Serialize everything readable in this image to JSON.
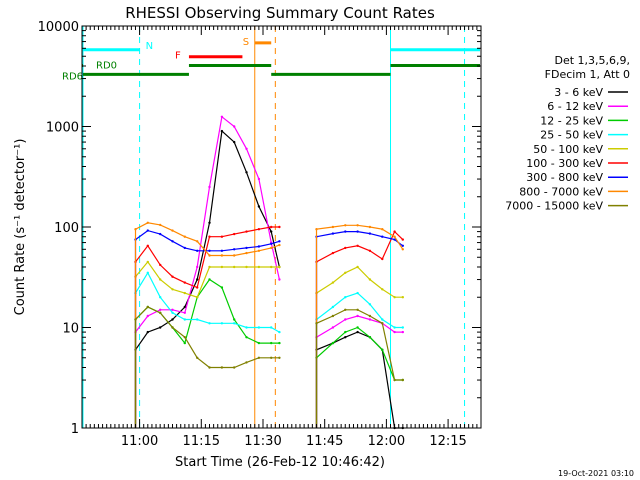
{
  "chart_data": {
    "type": "line",
    "title": "RHESSI Observing Summary Count Rates",
    "xlabel": "Start Time (26-Feb-12 10:46:42)",
    "ylabel": "Count Rate (s⁻¹ detector⁻¹)",
    "yscale": "log",
    "ylim": [
      1,
      10000
    ],
    "xlim_min_from_start": [
      0,
      97
    ],
    "x_ticks": [
      {
        "label": "11:00",
        "t": 14
      },
      {
        "label": "11:15",
        "t": 29
      },
      {
        "label": "11:30",
        "t": 44
      },
      {
        "label": "11:45",
        "t": 59
      },
      {
        "label": "12:00",
        "t": 74
      },
      {
        "label": "12:15",
        "t": 89
      }
    ],
    "y_ticks": [
      {
        "label": "1",
        "v": 1
      },
      {
        "label": "10",
        "v": 10
      },
      {
        "label": "100",
        "v": 100
      },
      {
        "label": "1000",
        "v": 1000
      },
      {
        "label": "10000",
        "v": 10000
      }
    ],
    "legend_header": [
      "Det 1,3,5,6,9,",
      "FDecim 1, Att 0"
    ],
    "legend_position": "right",
    "series": [
      {
        "name": "3 - 6 keV",
        "color": "#000000",
        "points": [
          [
            13,
            6
          ],
          [
            16,
            9
          ],
          [
            19,
            10
          ],
          [
            22,
            12
          ],
          [
            25,
            16
          ],
          [
            28,
            30
          ],
          [
            31,
            110
          ],
          [
            34,
            900
          ],
          [
            37,
            700
          ],
          [
            40,
            350
          ],
          [
            43,
            160
          ],
          [
            46,
            90
          ],
          [
            48,
            40
          ],
          [
            57,
            6
          ],
          [
            61,
            7
          ],
          [
            64,
            8
          ],
          [
            67,
            9
          ],
          [
            70,
            8
          ],
          [
            73,
            6
          ],
          [
            76,
            1
          ],
          [
            78,
            1
          ]
        ]
      },
      {
        "name": "6 - 12 keV",
        "color": "#ff00ff",
        "points": [
          [
            13,
            9
          ],
          [
            16,
            13
          ],
          [
            19,
            15
          ],
          [
            22,
            15
          ],
          [
            25,
            14
          ],
          [
            28,
            40
          ],
          [
            31,
            250
          ],
          [
            34,
            1250
          ],
          [
            37,
            1000
          ],
          [
            40,
            600
          ],
          [
            43,
            300
          ],
          [
            46,
            70
          ],
          [
            48,
            30
          ],
          [
            57,
            8
          ],
          [
            61,
            10
          ],
          [
            64,
            12
          ],
          [
            67,
            13
          ],
          [
            70,
            12
          ],
          [
            73,
            11
          ],
          [
            76,
            9
          ],
          [
            78,
            9
          ]
        ]
      },
      {
        "name": "12 - 25 keV",
        "color": "#00cc00",
        "points": [
          [
            13,
            12
          ],
          [
            16,
            16
          ],
          [
            19,
            14
          ],
          [
            22,
            10
          ],
          [
            25,
            7
          ],
          [
            28,
            20
          ],
          [
            31,
            30
          ],
          [
            34,
            25
          ],
          [
            37,
            12
          ],
          [
            40,
            8
          ],
          [
            43,
            7
          ],
          [
            46,
            7
          ],
          [
            48,
            7
          ],
          [
            57,
            5
          ],
          [
            61,
            7
          ],
          [
            64,
            9
          ],
          [
            67,
            10
          ],
          [
            70,
            8
          ],
          [
            73,
            6
          ],
          [
            76,
            3
          ],
          [
            78,
            3
          ]
        ]
      },
      {
        "name": "25 - 50 keV",
        "color": "#00ffff",
        "points": [
          [
            13,
            22
          ],
          [
            16,
            35
          ],
          [
            19,
            20
          ],
          [
            22,
            14
          ],
          [
            25,
            12
          ],
          [
            28,
            12
          ],
          [
            31,
            11
          ],
          [
            34,
            11
          ],
          [
            37,
            11
          ],
          [
            40,
            10
          ],
          [
            43,
            10
          ],
          [
            46,
            10
          ],
          [
            48,
            9
          ],
          [
            57,
            12
          ],
          [
            61,
            16
          ],
          [
            64,
            20
          ],
          [
            67,
            22
          ],
          [
            70,
            17
          ],
          [
            73,
            12
          ],
          [
            76,
            10
          ],
          [
            78,
            10
          ]
        ]
      },
      {
        "name": "50 - 100 keV",
        "color": "#cccc00",
        "points": [
          [
            13,
            32
          ],
          [
            16,
            45
          ],
          [
            19,
            30
          ],
          [
            22,
            24
          ],
          [
            25,
            22
          ],
          [
            28,
            20
          ],
          [
            31,
            40
          ],
          [
            34,
            40
          ],
          [
            37,
            40
          ],
          [
            40,
            40
          ],
          [
            43,
            40
          ],
          [
            46,
            40
          ],
          [
            48,
            40
          ],
          [
            57,
            22
          ],
          [
            61,
            28
          ],
          [
            64,
            35
          ],
          [
            67,
            40
          ],
          [
            70,
            30
          ],
          [
            73,
            24
          ],
          [
            76,
            20
          ],
          [
            78,
            20
          ]
        ]
      },
      {
        "name": "100 - 300 keV",
        "color": "#ff0000",
        "points": [
          [
            13,
            45
          ],
          [
            16,
            65
          ],
          [
            19,
            42
          ],
          [
            22,
            32
          ],
          [
            25,
            28
          ],
          [
            28,
            25
          ],
          [
            31,
            80
          ],
          [
            34,
            80
          ],
          [
            37,
            85
          ],
          [
            40,
            90
          ],
          [
            43,
            95
          ],
          [
            46,
            100
          ],
          [
            48,
            100
          ],
          [
            57,
            45
          ],
          [
            61,
            55
          ],
          [
            64,
            62
          ],
          [
            67,
            65
          ],
          [
            70,
            58
          ],
          [
            73,
            48
          ],
          [
            76,
            90
          ],
          [
            78,
            75
          ]
        ]
      },
      {
        "name": "300 - 800 keV",
        "color": "#0000ff",
        "points": [
          [
            13,
            75
          ],
          [
            16,
            92
          ],
          [
            19,
            85
          ],
          [
            22,
            72
          ],
          [
            25,
            62
          ],
          [
            28,
            58
          ],
          [
            31,
            58
          ],
          [
            34,
            58
          ],
          [
            37,
            60
          ],
          [
            40,
            62
          ],
          [
            43,
            64
          ],
          [
            46,
            68
          ],
          [
            48,
            72
          ],
          [
            57,
            80
          ],
          [
            61,
            86
          ],
          [
            64,
            90
          ],
          [
            67,
            90
          ],
          [
            70,
            86
          ],
          [
            73,
            80
          ],
          [
            76,
            75
          ],
          [
            78,
            65
          ]
        ]
      },
      {
        "name": "800 - 7000 keV",
        "color": "#ff8800",
        "points": [
          [
            13,
            95
          ],
          [
            16,
            110
          ],
          [
            19,
            105
          ],
          [
            22,
            92
          ],
          [
            25,
            80
          ],
          [
            28,
            72
          ],
          [
            31,
            52
          ],
          [
            34,
            52
          ],
          [
            37,
            52
          ],
          [
            40,
            55
          ],
          [
            43,
            58
          ],
          [
            46,
            62
          ],
          [
            48,
            66
          ],
          [
            57,
            95
          ],
          [
            61,
            100
          ],
          [
            64,
            104
          ],
          [
            67,
            104
          ],
          [
            70,
            100
          ],
          [
            73,
            95
          ],
          [
            76,
            80
          ],
          [
            78,
            60
          ]
        ]
      },
      {
        "name": "7000 - 15000 keV",
        "color": "#808000",
        "points": [
          [
            13,
            12
          ],
          [
            16,
            16
          ],
          [
            19,
            14
          ],
          [
            22,
            10
          ],
          [
            25,
            8
          ],
          [
            28,
            5
          ],
          [
            31,
            4
          ],
          [
            34,
            4
          ],
          [
            37,
            4
          ],
          [
            40,
            4.5
          ],
          [
            43,
            5
          ],
          [
            46,
            5
          ],
          [
            48,
            5
          ],
          [
            57,
            11
          ],
          [
            61,
            13
          ],
          [
            64,
            15
          ],
          [
            67,
            15
          ],
          [
            70,
            13
          ],
          [
            73,
            11
          ],
          [
            76,
            3
          ],
          [
            78,
            3
          ]
        ]
      }
    ],
    "observing_flags": [
      {
        "label": "N",
        "color": "#00ffff",
        "level": 5800,
        "segments": [
          [
            -1,
            14
          ],
          [
            75,
            97
          ]
        ]
      },
      {
        "label": "F",
        "color": "#ff0000",
        "level": 4950,
        "segments": [
          [
            26,
            39
          ]
        ]
      },
      {
        "label": "S",
        "color": "#ff8800",
        "level": 6800,
        "segments": [
          [
            42,
            46
          ]
        ]
      },
      {
        "label": "RD0",
        "color": "#008000",
        "level": 4050,
        "segments": [
          [
            -1,
            0
          ],
          [
            26,
            46
          ],
          [
            75,
            97
          ]
        ]
      },
      {
        "label": "RD6",
        "color": "#008000",
        "level": 3300,
        "segments": [
          [
            -1,
            26
          ],
          [
            46,
            75
          ]
        ]
      }
    ],
    "vertical_markers": [
      {
        "t": -1,
        "color": "#00ffff",
        "style": "solid"
      },
      {
        "t": 14,
        "color": "#00ffff",
        "style": "dashed"
      },
      {
        "t": 75,
        "color": "#00ffff",
        "style": "solid"
      },
      {
        "t": 93,
        "color": "#00ffff",
        "style": "dashed"
      },
      {
        "t": 42,
        "color": "#ff8800",
        "style": "solid"
      },
      {
        "t": 47,
        "color": "#ff8800",
        "style": "dashed"
      }
    ],
    "footer_date": "19-Oct-2021 03:10"
  }
}
